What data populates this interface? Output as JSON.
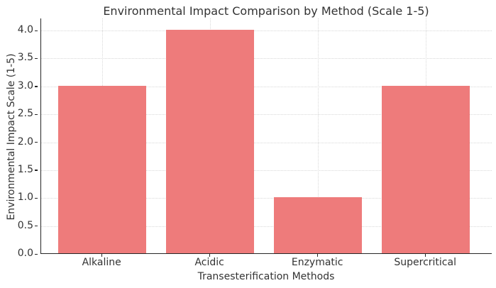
{
  "chart_data": {
    "type": "bar",
    "title": "Environmental Impact Comparison by Method (Scale 1-5)",
    "xlabel": "Transesterification Methods",
    "ylabel": "Environmental Impact Scale (1-5)",
    "categories": [
      "Alkaline",
      "Acidic",
      "Enzymatic",
      "Supercritical"
    ],
    "values": [
      3.0,
      4.0,
      1.0,
      3.0
    ],
    "ylim": [
      0.0,
      4.2
    ],
    "yticks": [
      0.0,
      0.5,
      1.0,
      1.5,
      2.0,
      2.5,
      3.0,
      3.5,
      4.0
    ],
    "ytick_labels": [
      "0.0",
      "0.5",
      "1.0",
      "1.5",
      "2.0",
      "2.5",
      "3.0",
      "3.5",
      "4.0"
    ],
    "grid": "on",
    "grid_style": "dotted",
    "legend": "none",
    "bar_color": "#ee7b7b",
    "axis_color": "#262626",
    "grid_color": "#d8d8d8",
    "text_color": "#333333",
    "background_color": "#ffffff"
  }
}
